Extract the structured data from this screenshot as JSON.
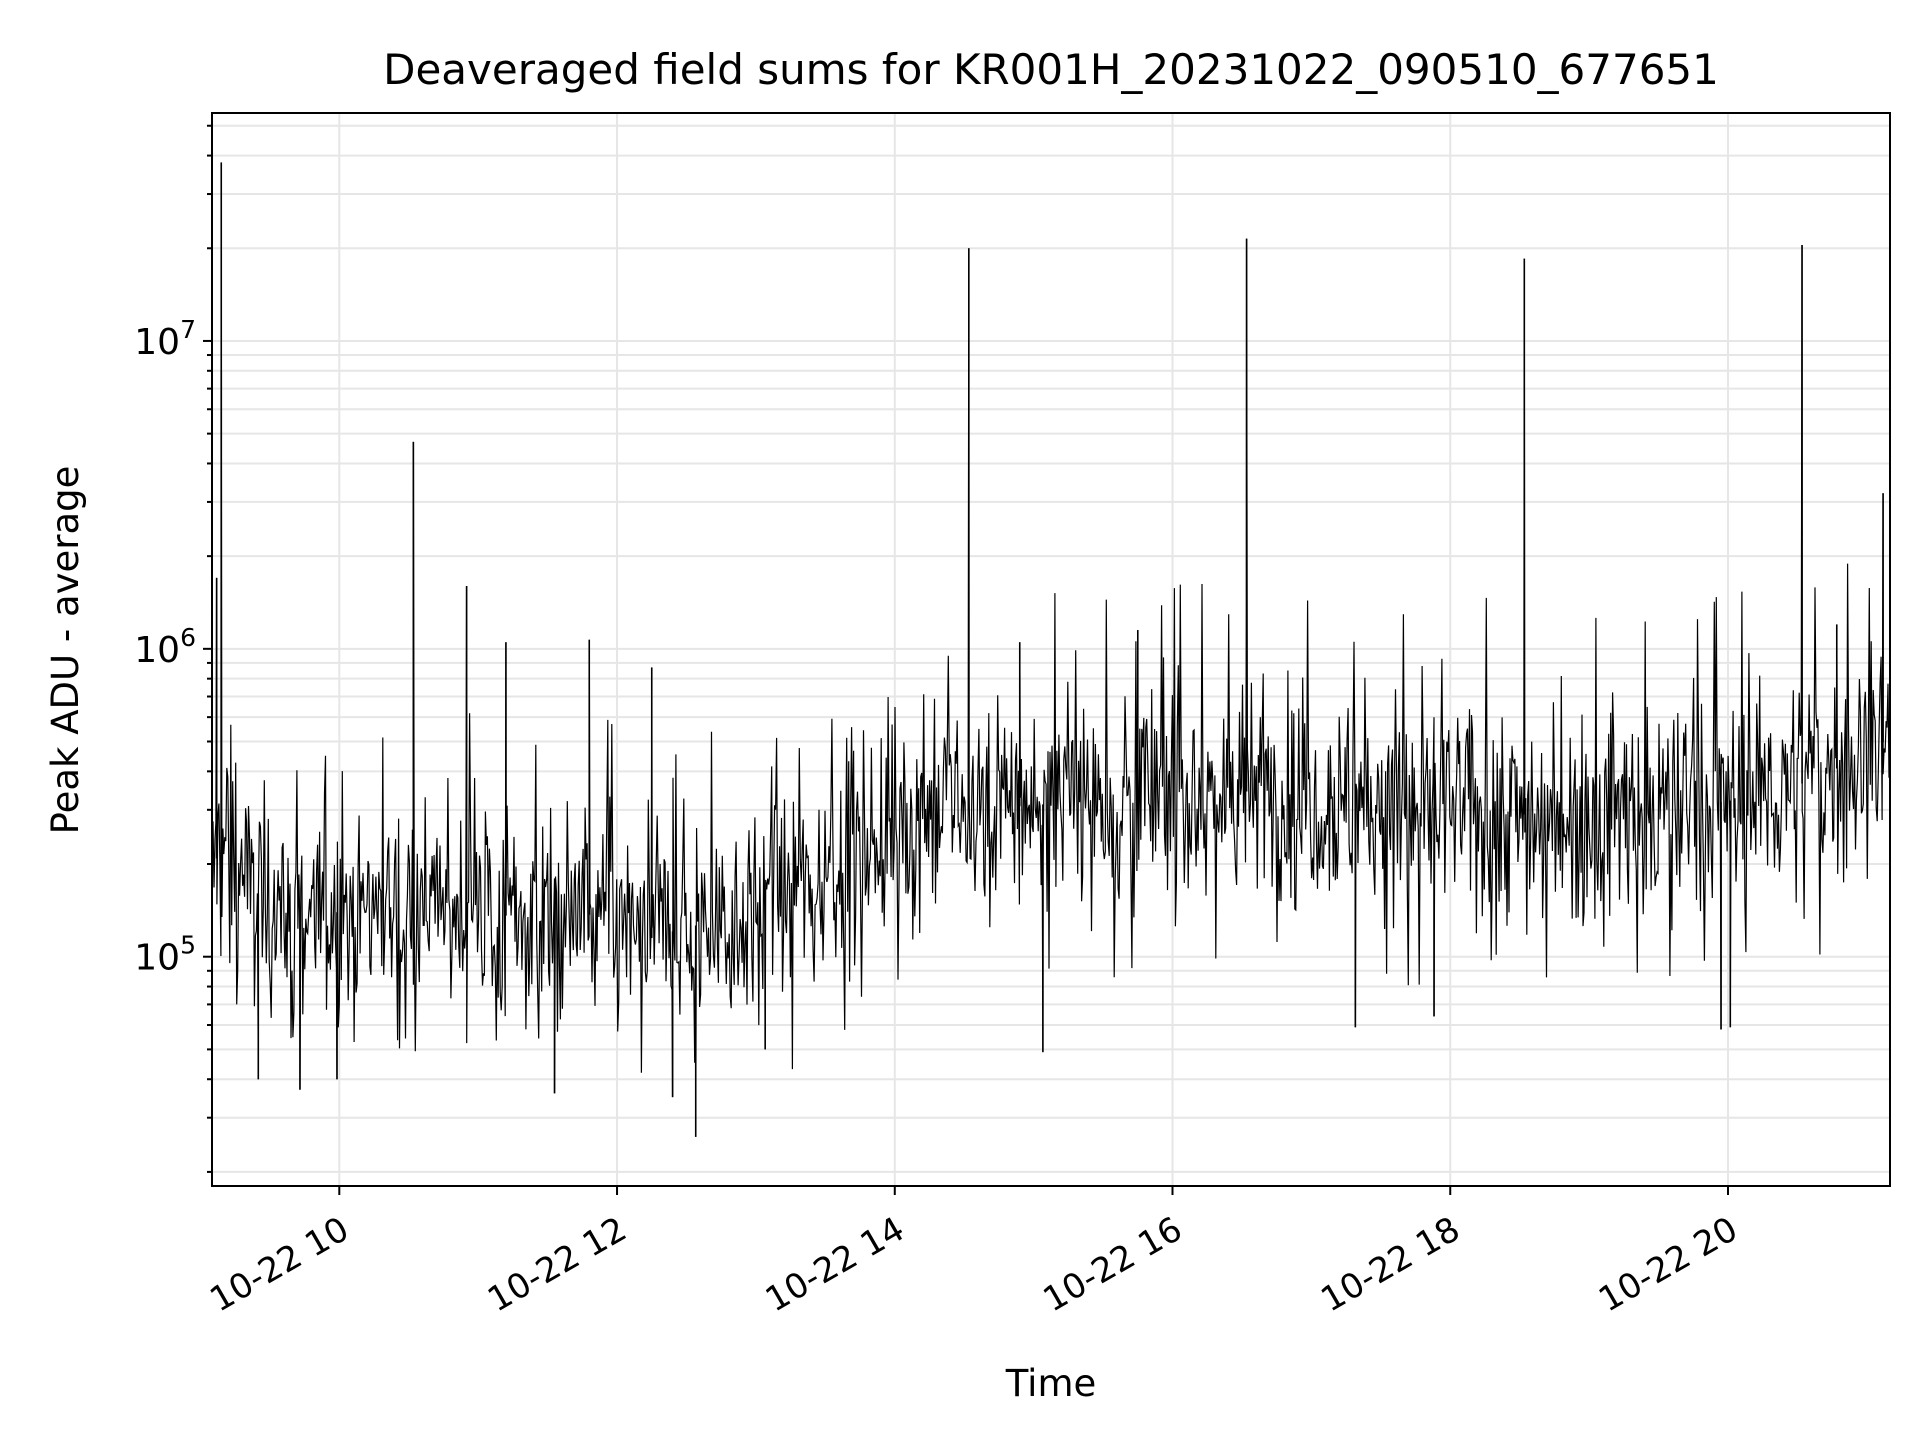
{
  "chart_data": {
    "type": "line",
    "title": "Deaveraged field sums for KR001H_20231022_090510_677651",
    "xlabel": "Time",
    "ylabel": "Peak ADU - average",
    "x_scale": "time",
    "y_scale": "log",
    "xlim": [
      "2023-10-22T09:05",
      "2023-10-22T21:10"
    ],
    "ylim": [
      18000,
      55000000
    ],
    "x_ticks": [
      {
        "t": "2023-10-22T10:00",
        "label": "10-22 10"
      },
      {
        "t": "2023-10-22T12:00",
        "label": "10-22 12"
      },
      {
        "t": "2023-10-22T14:00",
        "label": "10-22 14"
      },
      {
        "t": "2023-10-22T16:00",
        "label": "10-22 16"
      },
      {
        "t": "2023-10-22T18:00",
        "label": "10-22 18"
      },
      {
        "t": "2023-10-22T20:00",
        "label": "10-22 20"
      }
    ],
    "y_ticks": [
      {
        "value": 100000,
        "base": "10",
        "exp": "5"
      },
      {
        "value": 1000000,
        "base": "10",
        "exp": "6"
      },
      {
        "value": 10000000,
        "base": "10",
        "exp": "7"
      }
    ],
    "grid": true,
    "line_color": "#000000",
    "grid_color": "#e6e6e6",
    "series": [
      {
        "x": [
          "2023-10-22T09:05",
          "2023-10-22T09:10",
          "2023-10-22T09:15",
          "2023-10-22T09:20",
          "2023-10-22T09:30",
          "2023-10-22T09:40",
          "2023-10-22T09:50",
          "2023-10-22T10:00",
          "2023-10-22T10:15",
          "2023-10-22T10:30",
          "2023-10-22T10:45",
          "2023-10-22T11:00",
          "2023-10-22T11:15",
          "2023-10-22T11:30",
          "2023-10-22T11:45",
          "2023-10-22T12:00",
          "2023-10-22T12:15",
          "2023-10-22T12:30",
          "2023-10-22T12:45",
          "2023-10-22T13:00",
          "2023-10-22T13:15",
          "2023-10-22T13:30",
          "2023-10-22T13:45",
          "2023-10-22T14:00",
          "2023-10-22T14:30",
          "2023-10-22T15:00",
          "2023-10-22T15:30",
          "2023-10-22T16:00",
          "2023-10-22T16:30",
          "2023-10-22T17:00",
          "2023-10-22T17:30",
          "2023-10-22T18:00",
          "2023-10-22T18:30",
          "2023-10-22T19:00",
          "2023-10-22T19:30",
          "2023-10-22T20:00",
          "2023-10-22T20:30",
          "2023-10-22T21:00",
          "2023-10-22T21:10"
        ],
        "y": [
          180000,
          260000,
          220000,
          170000,
          150000,
          140000,
          135000,
          140000,
          150000,
          155000,
          150000,
          140000,
          135000,
          130000,
          140000,
          125000,
          115000,
          125000,
          130000,
          140000,
          160000,
          190000,
          230000,
          270000,
          300000,
          310000,
          330000,
          340000,
          345000,
          330000,
          320000,
          300000,
          290000,
          290000,
          300000,
          320000,
          360000,
          450000,
          520000
        ]
      }
    ],
    "spikes": [
      {
        "t": "2023-10-22T09:09",
        "value": 38000000
      },
      {
        "t": "2023-10-22T09:09",
        "value": 8000000
      },
      {
        "t": "2023-10-22T09:07",
        "value": 1700000
      },
      {
        "t": "2023-10-22T10:32",
        "value": 4700000
      },
      {
        "t": "2023-10-22T10:55",
        "value": 1600000
      },
      {
        "t": "2023-10-22T11:12",
        "value": 1050000
      },
      {
        "t": "2023-10-22T11:48",
        "value": 1070000
      },
      {
        "t": "2023-10-22T12:15",
        "value": 870000
      },
      {
        "t": "2023-10-22T14:32",
        "value": 20000000
      },
      {
        "t": "2023-10-22T14:54",
        "value": 1050000
      },
      {
        "t": "2023-10-22T15:45",
        "value": 1150000
      },
      {
        "t": "2023-10-22T16:32",
        "value": 21500000
      },
      {
        "t": "2023-10-22T18:32",
        "value": 18500000
      },
      {
        "t": "2023-10-22T20:32",
        "value": 20500000
      },
      {
        "t": "2023-10-22T20:47",
        "value": 1200000
      },
      {
        "t": "2023-10-22T21:07",
        "value": 3200000
      }
    ],
    "dips": [
      {
        "t": "2023-10-22T09:25",
        "value": 40000
      },
      {
        "t": "2023-10-22T09:43",
        "value": 37000
      },
      {
        "t": "2023-10-22T09:59",
        "value": 40000
      },
      {
        "t": "2023-10-22T11:33",
        "value": 36000
      },
      {
        "t": "2023-10-22T12:24",
        "value": 35000
      },
      {
        "t": "2023-10-22T12:34",
        "value": 26000
      },
      {
        "t": "2023-10-22T13:04",
        "value": 50000
      },
      {
        "t": "2023-10-22T15:04",
        "value": 49000
      },
      {
        "t": "2023-10-22T17:19",
        "value": 59000
      },
      {
        "t": "2023-10-22T17:53",
        "value": 64000
      },
      {
        "t": "2023-10-22T19:57",
        "value": 58000
      },
      {
        "t": "2023-10-22T20:01",
        "value": 59000
      }
    ]
  }
}
